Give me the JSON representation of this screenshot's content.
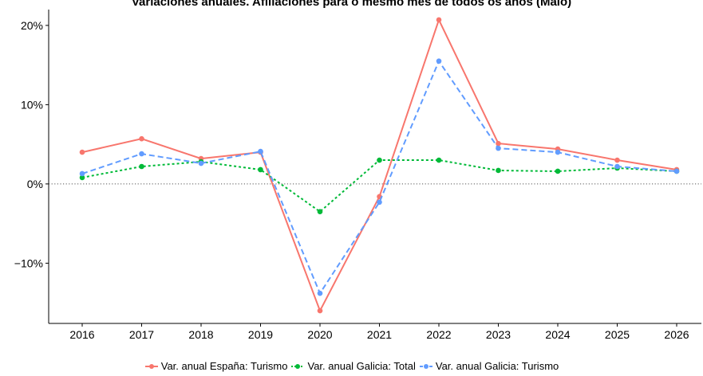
{
  "chart_data": {
    "type": "line",
    "title": "Variaciones anuales. Afiliaciones para o mesmo mes de todos os anos (Maio)",
    "xlabel": "",
    "ylabel": "",
    "categories": [
      "2016",
      "2017",
      "2018",
      "2019",
      "2020",
      "2021",
      "2022",
      "2023",
      "2024",
      "2025",
      "2026"
    ],
    "ylim": [
      -17.6,
      22.0
    ],
    "yticks": [
      20,
      10,
      0,
      -10
    ],
    "ytick_labels": [
      "20%",
      "10%",
      "0%",
      "−10%"
    ],
    "reference_line": 0,
    "grid": false,
    "legend_position": "bottom",
    "series": [
      {
        "name": "Var. anual España: Turismo",
        "color": "#F8766D",
        "dash": "solid",
        "values": [
          4.0,
          5.7,
          3.2,
          4.0,
          -16.0,
          -1.6,
          20.7,
          5.1,
          4.4,
          3.0,
          1.8
        ]
      },
      {
        "name": "Var. anual Galicia: Total",
        "color": "#00BA38",
        "dash": "dotted",
        "values": [
          0.8,
          2.2,
          2.8,
          1.8,
          -3.5,
          3.0,
          3.0,
          1.7,
          1.6,
          2.0,
          1.6
        ]
      },
      {
        "name": "Var. anual Galicia: Turismo",
        "color": "#619CFF",
        "dash": "dashed",
        "values": [
          1.3,
          3.8,
          2.6,
          4.1,
          -13.8,
          -2.3,
          15.5,
          4.5,
          4.0,
          2.2,
          1.6
        ]
      }
    ]
  }
}
